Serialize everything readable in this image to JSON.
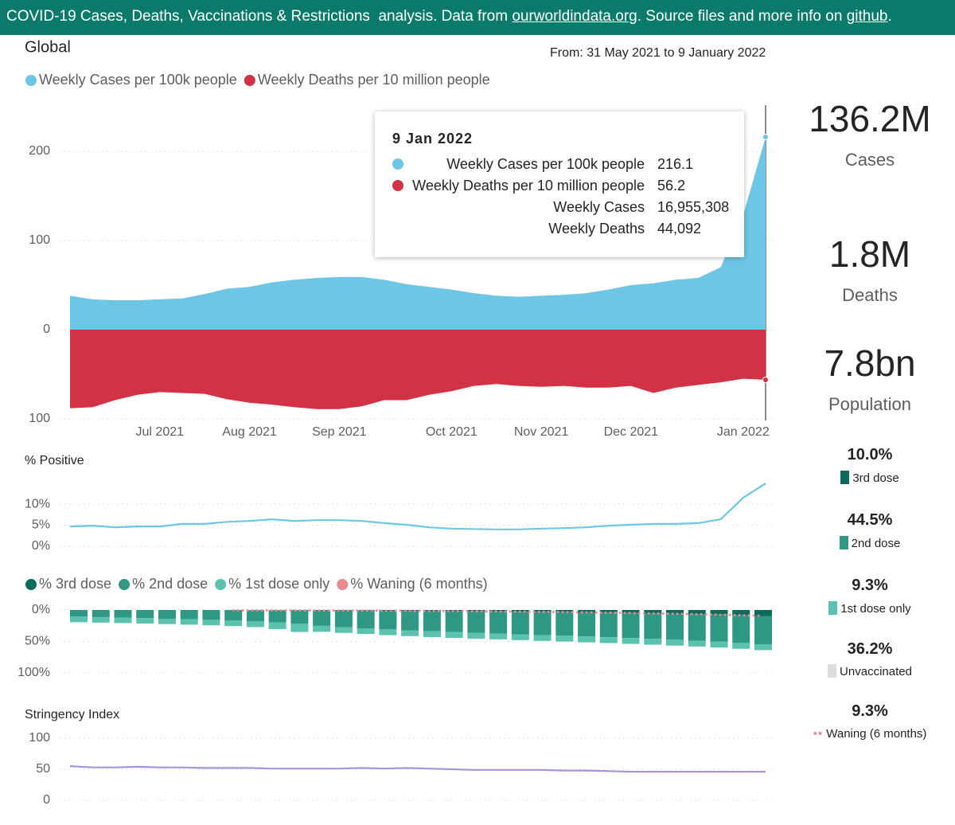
{
  "header": {
    "text_1": "COVID-19 Cases, Deaths, Vaccinations & Restrictions  analysis. Data from ",
    "link_1": "ourworldindata.org",
    "text_2": ". Source files and more info on ",
    "link_2": "github",
    "text_3": "."
  },
  "date_range": "From: 31 May 2021 to 9 January 2022",
  "tooltip": {
    "title": "9 Jan 2022",
    "rows": [
      {
        "label": "Weekly Cases per 100k people",
        "value": "216.1"
      },
      {
        "label": "Weekly Deaths per 10 million people",
        "value": "56.2"
      },
      {
        "label": "Weekly Cases",
        "value": "16,955,308"
      },
      {
        "label": "Weekly Deaths",
        "value": "44,092"
      }
    ]
  },
  "kpis": [
    {
      "value": "136.2M",
      "label": "Cases"
    },
    {
      "value": "1.8M",
      "label": "Deaths"
    },
    {
      "value": "7.8bn",
      "label": "Population"
    },
    {
      "value": "10.0%",
      "label": "3rd dose"
    },
    {
      "value": "44.5%",
      "label": "2nd dose"
    },
    {
      "value": "9.3%",
      "label": "1st dose only"
    },
    {
      "value": "36.2%",
      "label": "Unvaccinated"
    },
    {
      "value": "9.3%",
      "label": "Waning (6 months)"
    }
  ],
  "chart_data": [
    {
      "type": "area",
      "title": "Global",
      "categories": [
        null,
        null,
        null,
        null,
        "Jul 2021",
        null,
        null,
        null,
        "Aug 2021",
        null,
        null,
        null,
        "Sep 2021",
        null,
        null,
        null,
        null,
        "Oct 2021",
        null,
        null,
        null,
        "Nov 2021",
        null,
        null,
        null,
        "Dec 2021",
        null,
        null,
        null,
        null,
        "Jan 2022",
        null
      ],
      "series": [
        {
          "name": "Weekly Cases per 100k people",
          "color": "#6ec6e6",
          "values": [
            38,
            34,
            33,
            33,
            34,
            35,
            40,
            46,
            48,
            53,
            56,
            58,
            59,
            59,
            56,
            51,
            48,
            45,
            41,
            38,
            37,
            38,
            39,
            41,
            45,
            50,
            52,
            56,
            58,
            70,
            128,
            216.1
          ]
        },
        {
          "name": "Weekly Deaths per 10 million people",
          "color": "#d13245",
          "values": [
            -88,
            -87,
            -79,
            -73,
            -70,
            -71,
            -72,
            -78,
            -82,
            -84,
            -87,
            -89,
            -89,
            -86,
            -79,
            -79,
            -73,
            -69,
            -63,
            -61,
            -63,
            -64,
            -63,
            -65,
            -65,
            -63,
            -71,
            -65,
            -62,
            -59,
            -55,
            -56.2
          ]
        }
      ],
      "ylim": [
        -100,
        250
      ],
      "yticks": [
        200,
        100,
        0,
        {
          "value": -100,
          "label": "100"
        }
      ],
      "grid": true
    },
    {
      "type": "line",
      "title": "% Positive",
      "series": [
        {
          "color": "#6ec6e6",
          "values": [
            4.7,
            4.9,
            4.5,
            4.7,
            4.7,
            5.3,
            5.3,
            5.8,
            6.0,
            6.4,
            6.0,
            6.2,
            6.2,
            6.0,
            5.5,
            5.1,
            4.5,
            4.2,
            4.1,
            4.0,
            4.0,
            4.2,
            4.3,
            4.5,
            4.9,
            5.1,
            5.3,
            5.3,
            5.5,
            6.4,
            11.5,
            14.9
          ]
        }
      ],
      "ylim": [
        0,
        17
      ],
      "yticks": [
        {
          "value": 10,
          "label": "10%"
        },
        {
          "value": 5,
          "label": "5%"
        },
        {
          "value": 0,
          "label": "0%"
        }
      ],
      "grid": true
    },
    {
      "type": "bar",
      "stacked": true,
      "y_inverted": true,
      "series": [
        {
          "name": "% 3rd dose",
          "color": "#0b6b5d",
          "values": [
            0,
            0,
            0,
            0,
            0,
            0,
            0,
            0.1,
            0.2,
            0.3,
            0.5,
            0.7,
            0.9,
            1.1,
            1.3,
            1.5,
            1.8,
            2.0,
            2.2,
            2.4,
            2.7,
            3.0,
            3.3,
            3.7,
            4.1,
            4.6,
            5.1,
            5.7,
            6.4,
            7.3,
            8.6,
            10.0
          ]
        },
        {
          "name": "% 2nd dose",
          "color": "#2f9884",
          "values": [
            10.5,
            11.3,
            12.1,
            13.0,
            13.9,
            14.8,
            15.7,
            16.8,
            18.0,
            19.5,
            21.5,
            24.5,
            26.5,
            28.0,
            29.5,
            30.8,
            32.0,
            33.0,
            34.0,
            35.0,
            35.9,
            36.8,
            37.6,
            38.4,
            39.2,
            40.0,
            40.8,
            41.6,
            42.4,
            43.1,
            43.8,
            44.5
          ]
        },
        {
          "name": "% 1st dose only",
          "color": "#5cc2b0",
          "values": [
            9.0,
            8.8,
            8.7,
            8.6,
            8.5,
            8.5,
            8.6,
            8.7,
            9.0,
            10.5,
            13.0,
            9.5,
            9.0,
            9.0,
            9.2,
            9.2,
            9.2,
            9.3,
            9.3,
            9.3,
            9.3,
            9.3,
            9.3,
            9.3,
            9.3,
            9.3,
            9.3,
            9.3,
            9.3,
            9.3,
            9.3,
            9.3
          ]
        },
        {
          "name": "% Waning (6 months)",
          "color": "#e8898f",
          "kind": "line",
          "values": [
            null,
            null,
            null,
            null,
            null,
            null,
            null,
            0.5,
            0.6,
            0.7,
            0.8,
            0.9,
            1.0,
            1.1,
            1.2,
            1.4,
            1.6,
            1.8,
            2.0,
            2.3,
            2.6,
            3.0,
            3.4,
            3.8,
            4.3,
            4.8,
            5.4,
            6.0,
            6.7,
            7.5,
            8.4,
            9.3
          ]
        }
      ],
      "ylim": [
        0,
        100
      ],
      "yticks": [
        {
          "value": 0,
          "label": "0%"
        },
        {
          "value": 50,
          "label": "50%"
        },
        {
          "value": 100,
          "label": "100%"
        }
      ],
      "grid": true
    },
    {
      "type": "line",
      "title": "Stringency Index",
      "series": [
        {
          "color": "#a993d8",
          "values": [
            55,
            53,
            53,
            54,
            53,
            53,
            52,
            52,
            52,
            51,
            51,
            51,
            51,
            52,
            51,
            52,
            51,
            50,
            49,
            49,
            49,
            49,
            48,
            48,
            47,
            46,
            46,
            46,
            46,
            46,
            46,
            46
          ]
        }
      ],
      "ylim": [
        0,
        100
      ],
      "yticks": [
        100,
        50,
        0
      ],
      "grid": true
    }
  ]
}
